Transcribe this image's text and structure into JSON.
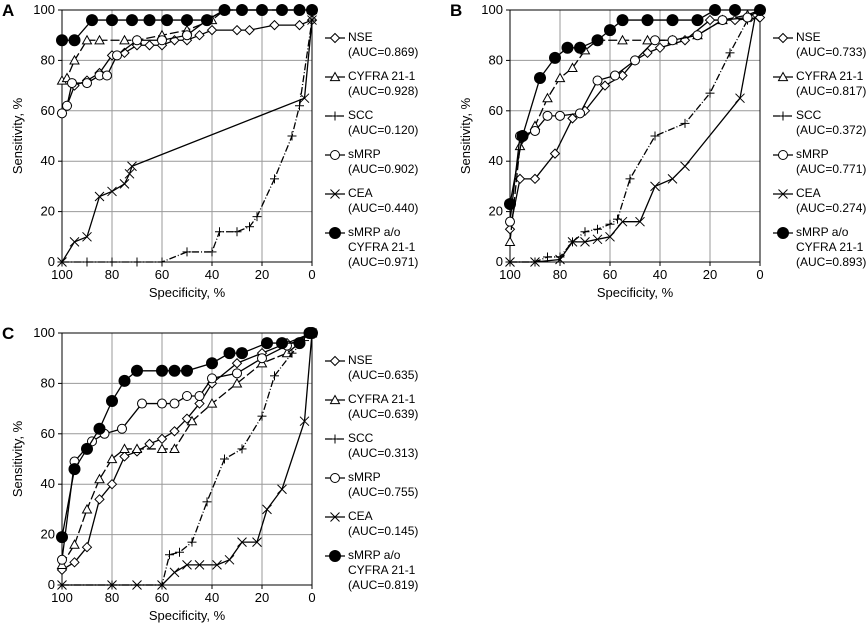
{
  "chart_data": [
    {
      "type": "line",
      "panel": "A",
      "xlabel": "Specificity, %",
      "ylabel": "Sensitivity, %",
      "xlim": [
        100,
        0
      ],
      "ylim": [
        0,
        100
      ],
      "xticks": [
        100,
        80,
        60,
        40,
        20,
        0
      ],
      "yticks": [
        0,
        20,
        40,
        60,
        80,
        100
      ],
      "grid": true,
      "legend": "right",
      "series": [
        {
          "name": "NSE",
          "auc": "(AUC=0.869)",
          "marker": "diamond",
          "dash": "none",
          "color": "#000",
          "x": [
            100,
            98,
            95,
            90,
            85,
            80,
            75,
            70,
            65,
            60,
            55,
            50,
            45,
            40,
            30,
            25,
            15,
            5,
            0
          ],
          "values": [
            59,
            62,
            70,
            72,
            75,
            82,
            83,
            86,
            86,
            86,
            88,
            88,
            90,
            92,
            92,
            92,
            94,
            94,
            96
          ]
        },
        {
          "name": "CYFRA 21-1",
          "auc": "(AUC=0.928)",
          "marker": "triangle",
          "dash": "9 3",
          "color": "#000",
          "x": [
            100,
            98,
            95,
            90,
            85,
            75,
            70,
            60,
            50,
            40,
            35,
            0
          ],
          "values": [
            72,
            73,
            80,
            88,
            88,
            88,
            88,
            90,
            92,
            96,
            100,
            100
          ]
        },
        {
          "name": "SCC",
          "auc": "(AUC=0.120)",
          "marker": "plus",
          "dash": "7 2 1 2",
          "color": "#000",
          "x": [
            100,
            90,
            80,
            70,
            60,
            50,
            40,
            37,
            30,
            25,
            22,
            15,
            8,
            5,
            0
          ],
          "values": [
            0,
            0,
            0,
            0,
            0,
            4,
            4,
            12,
            12,
            14,
            18,
            33,
            50,
            62,
            96
          ]
        },
        {
          "name": "sMRP",
          "auc": "(AUC=0.902)",
          "marker": "circle",
          "dash": "none",
          "color": "#000",
          "x": [
            100,
            98,
            96,
            90,
            85,
            82,
            78,
            70,
            60,
            50,
            42,
            35,
            0
          ],
          "values": [
            59,
            62,
            71,
            71,
            74,
            74,
            82,
            88,
            88,
            90,
            96,
            100,
            100
          ]
        },
        {
          "name": "CEA",
          "auc": "(AUC=0.440)",
          "marker": "x",
          "dash": "none",
          "color": "#000",
          "x": [
            100,
            95,
            90,
            85,
            80,
            75,
            73,
            72,
            3,
            0
          ],
          "values": [
            0,
            8,
            10,
            26,
            28,
            31,
            35,
            38,
            65,
            96
          ]
        },
        {
          "name": "sMRP a/o CYFRA 21-1",
          "auc": "(AUC=0.971)",
          "marker": "dot",
          "dash": "none",
          "color": "#000",
          "x": [
            100,
            95,
            88,
            80,
            72,
            65,
            58,
            50,
            42,
            35,
            28,
            20,
            12,
            5,
            0
          ],
          "values": [
            88,
            88,
            96,
            96,
            96,
            96,
            96,
            96,
            96,
            100,
            100,
            100,
            100,
            100,
            100
          ]
        }
      ]
    },
    {
      "type": "line",
      "panel": "B",
      "xlabel": "Specificity, %",
      "ylabel": "Sensitivity, %",
      "xlim": [
        100,
        0
      ],
      "ylim": [
        0,
        100
      ],
      "xticks": [
        100,
        80,
        60,
        40,
        20,
        0
      ],
      "yticks": [
        0,
        20,
        40,
        60,
        80,
        100
      ],
      "grid": true,
      "legend": "right",
      "series": [
        {
          "name": "NSE",
          "auc": "(AUC=0.733)",
          "marker": "diamond",
          "dash": "none",
          "color": "#000",
          "x": [
            100,
            96,
            90,
            82,
            75,
            70,
            62,
            55,
            50,
            45,
            40,
            30,
            20,
            10,
            0
          ],
          "values": [
            13,
            33,
            33,
            43,
            57,
            60,
            70,
            74,
            80,
            83,
            85,
            88,
            96,
            96,
            97
          ]
        },
        {
          "name": "CYFRA 21-1",
          "auc": "(AUC=0.817)",
          "marker": "triangle",
          "dash": "9 3",
          "color": "#000",
          "x": [
            100,
            96,
            90,
            85,
            80,
            75,
            70,
            65,
            55,
            45,
            35,
            25,
            15,
            5,
            0
          ],
          "values": [
            8,
            46,
            54,
            65,
            73,
            77,
            84,
            88,
            88,
            88,
            88,
            90,
            96,
            98,
            100
          ]
        },
        {
          "name": "SCC",
          "auc": "(AUC=0.372)",
          "marker": "plus",
          "dash": "7 2 1 2",
          "color": "#000",
          "x": [
            100,
            90,
            85,
            80,
            75,
            70,
            65,
            60,
            57,
            52,
            42,
            30,
            20,
            12,
            5
          ],
          "values": [
            0,
            0,
            2,
            2,
            8,
            12,
            13,
            15,
            17,
            33,
            50,
            55,
            67,
            83,
            96
          ]
        },
        {
          "name": "sMRP",
          "auc": "(AUC=0.771)",
          "marker": "circle",
          "dash": "none",
          "color": "#000",
          "x": [
            100,
            96,
            90,
            85,
            80,
            72,
            65,
            58,
            50,
            42,
            35,
            25,
            15,
            5,
            0
          ],
          "values": [
            16,
            50,
            52,
            58,
            58,
            59,
            72,
            74,
            80,
            88,
            88,
            90,
            96,
            97,
            100
          ]
        },
        {
          "name": "CEA",
          "auc": "(AUC=0.274)",
          "marker": "x",
          "dash": "none",
          "color": "#000",
          "x": [
            100,
            90,
            80,
            75,
            70,
            65,
            60,
            55,
            48,
            42,
            35,
            30,
            8,
            2
          ],
          "values": [
            0,
            0,
            1,
            8,
            8,
            9,
            10,
            16,
            16,
            30,
            33,
            38,
            65,
            97
          ]
        },
        {
          "name": "sMRP a/o CYFRA 21-1",
          "auc": "(AUC=0.893)",
          "marker": "dot",
          "dash": "none",
          "color": "#000",
          "x": [
            100,
            95,
            88,
            82,
            77,
            72,
            65,
            60,
            55,
            45,
            35,
            25,
            18,
            10,
            0
          ],
          "values": [
            23,
            50,
            73,
            81,
            85,
            85,
            88,
            92,
            96,
            96,
            96,
            96,
            100,
            100,
            100
          ]
        }
      ]
    },
    {
      "type": "line",
      "panel": "C",
      "xlabel": "Specificity, %",
      "ylabel": "Sensitivity, %",
      "xlim": [
        100,
        0
      ],
      "ylim": [
        0,
        100
      ],
      "xticks": [
        100,
        80,
        60,
        40,
        20,
        0
      ],
      "yticks": [
        0,
        20,
        40,
        60,
        80,
        100
      ],
      "grid": true,
      "legend": "right",
      "series": [
        {
          "name": "NSE",
          "auc": "(AUC=0.635)",
          "marker": "diamond",
          "dash": "none",
          "color": "#000",
          "x": [
            100,
            95,
            90,
            85,
            80,
            75,
            70,
            65,
            60,
            55,
            50,
            45,
            40,
            30,
            20,
            10,
            0
          ],
          "values": [
            6,
            9,
            15,
            34,
            40,
            51,
            53,
            56,
            58,
            61,
            66,
            72,
            80,
            88,
            92,
            96,
            100
          ]
        },
        {
          "name": "CYFRA 21-1",
          "auc": "(AUC=0.639)",
          "marker": "triangle",
          "dash": "9 3",
          "color": "#000",
          "x": [
            100,
            95,
            90,
            85,
            80,
            75,
            70,
            60,
            55,
            48,
            40,
            30,
            20,
            10,
            0
          ],
          "values": [
            8,
            16,
            30,
            42,
            50,
            54,
            54,
            54,
            54,
            65,
            72,
            80,
            88,
            92,
            100
          ]
        },
        {
          "name": "SCC",
          "auc": "(AUC=0.313)",
          "marker": "plus",
          "dash": "7 2 1 2",
          "color": "#000",
          "x": [
            100,
            80,
            60,
            57,
            53,
            48,
            42,
            35,
            28,
            20,
            15,
            8,
            3
          ],
          "values": [
            0,
            0,
            0,
            12,
            13,
            17,
            33,
            50,
            54,
            67,
            83,
            92,
            97
          ]
        },
        {
          "name": "sMRP",
          "auc": "(AUC=0.755)",
          "marker": "circle",
          "dash": "none",
          "color": "#000",
          "x": [
            100,
            95,
            88,
            83,
            76,
            68,
            60,
            55,
            50,
            45,
            40,
            30,
            20,
            10,
            0
          ],
          "values": [
            10,
            49,
            57,
            60,
            62,
            72,
            72,
            72,
            75,
            75,
            82,
            84,
            90,
            95,
            100
          ]
        },
        {
          "name": "CEA",
          "auc": "(AUC=0.145)",
          "marker": "x",
          "dash": "none",
          "color": "#000",
          "x": [
            100,
            80,
            70,
            60,
            55,
            50,
            45,
            38,
            33,
            28,
            22,
            18,
            12,
            3,
            0
          ],
          "values": [
            0,
            0,
            0,
            0,
            5,
            8,
            8,
            8,
            10,
            17,
            17,
            30,
            38,
            65,
            100
          ]
        },
        {
          "name": "sMRP a/o CYFRA 21-1",
          "auc": "(AUC=0.819)",
          "marker": "dot",
          "dash": "none",
          "color": "#000",
          "x": [
            100,
            95,
            90,
            85,
            80,
            75,
            70,
            60,
            55,
            50,
            40,
            33,
            28,
            18,
            12,
            5,
            1,
            0
          ],
          "values": [
            19,
            46,
            54,
            62,
            73,
            81,
            85,
            85,
            85,
            85,
            88,
            92,
            92,
            96,
            96,
            96,
            100,
            100
          ]
        }
      ]
    }
  ]
}
